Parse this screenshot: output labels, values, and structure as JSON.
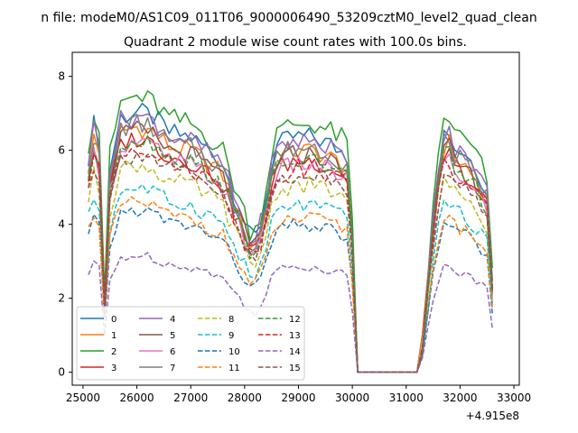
{
  "figure": {
    "suptitle": "n file: modeM0/AS1C09_011T06_9000006490_53209cztM0_level2_quad_clean",
    "title": "Quadrant 2 module wise count rates with 100.0s bins.",
    "offset_label": "+4.915e8"
  },
  "chart_data": {
    "type": "line",
    "title": "Quadrant 2 module wise count rates with 100.0s bins.",
    "xlim": [
      24800,
      33100
    ],
    "ylim": [
      -0.35,
      8.65
    ],
    "x_offset": 491500000,
    "xticks": [
      25000,
      26000,
      27000,
      28000,
      29000,
      30000,
      31000,
      32000,
      33000
    ],
    "yticks": [
      0,
      2,
      4,
      6,
      8
    ],
    "grid": false,
    "legend_placement": "lower-left",
    "legend_columns": 4,
    "colors": [
      "#1f77b4",
      "#ff7f0e",
      "#2ca02c",
      "#d62728",
      "#9467bd",
      "#8c564b",
      "#e377c2",
      "#7f7f7f",
      "#bcbd22",
      "#17becf"
    ],
    "series": [
      {
        "name": "0",
        "style": "solid",
        "color": "#1f77b4",
        "base": 6.9
      },
      {
        "name": "1",
        "style": "solid",
        "color": "#ff7f0e",
        "base": 6.5
      },
      {
        "name": "2",
        "style": "solid",
        "color": "#2ca02c",
        "base": 7.3
      },
      {
        "name": "3",
        "style": "solid",
        "color": "#d62728",
        "base": 6.2
      },
      {
        "name": "4",
        "style": "solid",
        "color": "#9467bd",
        "base": 6.8
      },
      {
        "name": "5",
        "style": "solid",
        "color": "#8c564b",
        "base": 6.4
      },
      {
        "name": "6",
        "style": "solid",
        "color": "#e377c2",
        "base": 6.1
      },
      {
        "name": "7",
        "style": "solid",
        "color": "#7f7f7f",
        "base": 6.6
      },
      {
        "name": "8",
        "style": "dashed",
        "color": "#bcbd22",
        "base": 5.5
      },
      {
        "name": "9",
        "style": "dashed",
        "color": "#17becf",
        "base": 4.9
      },
      {
        "name": "10",
        "style": "dashed",
        "color": "#1f77b4",
        "base": 4.3
      },
      {
        "name": "11",
        "style": "dashed",
        "color": "#ff7f0e",
        "base": 4.5
      },
      {
        "name": "12",
        "style": "dashed",
        "color": "#2ca02c",
        "base": 6.2
      },
      {
        "name": "13",
        "style": "dashed",
        "color": "#d62728",
        "base": 6.0
      },
      {
        "name": "14",
        "style": "dashed",
        "color": "#9467bd",
        "base": 3.1
      },
      {
        "name": "15",
        "style": "dashed",
        "color": "#8c564b",
        "base": 5.8
      }
    ]
  }
}
